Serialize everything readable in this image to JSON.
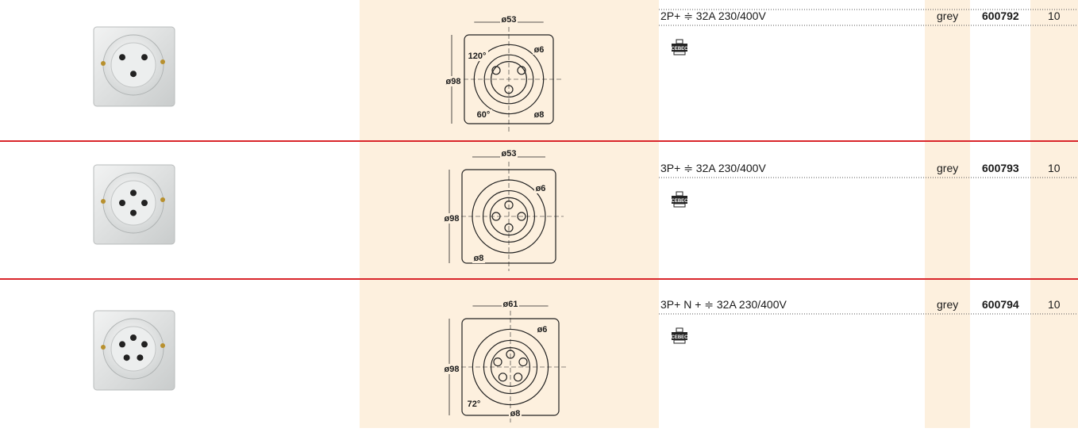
{
  "rows": [
    {
      "spec": "2P+ ≑ 32A  230/400V",
      "color": "grey",
      "code": "600792",
      "qty": "10",
      "logo": "CEBEC",
      "diagram": [
        "ø53",
        "ø6",
        "ø98",
        "120°",
        "60°",
        "ø8"
      ]
    },
    {
      "spec": "3P+ ≑ 32A  230/400V",
      "color": "grey",
      "code": "600793",
      "qty": "10",
      "logo": "CEBEC",
      "diagram": [
        "ø53",
        "ø6",
        "ø98",
        "ø8"
      ]
    },
    {
      "spec": "3P+ N + ≑ 32A  230/400V",
      "color": "grey",
      "code": "600794",
      "qty": "10",
      "logo": "CEBEC",
      "diagram": [
        "ø61",
        "ø6",
        "ø98",
        "72°",
        "ø8"
      ]
    }
  ]
}
